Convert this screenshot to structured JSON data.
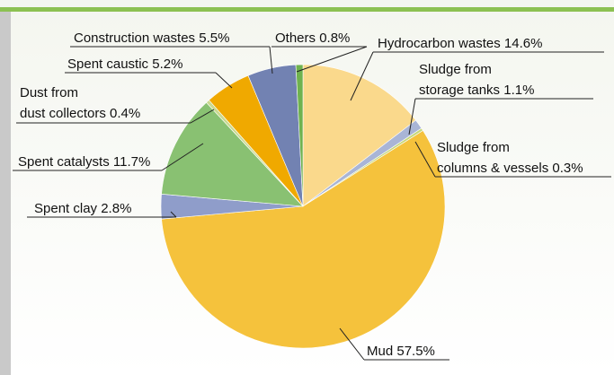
{
  "chart_data": {
    "type": "pie",
    "categories": [
      "Hydrocarbon wastes",
      "Sludge from\nstorage tanks",
      "Sludge from\ncolumns & vessels",
      "Mud",
      "Spent clay",
      "Spent catalysts",
      "Dust from\ndust collectors",
      "Spent caustic",
      "Construction wastes",
      "Others"
    ],
    "values": [
      14.6,
      1.1,
      0.3,
      57.5,
      2.8,
      11.7,
      0.4,
      5.2,
      5.5,
      0.8
    ],
    "value_labels": [
      "14.6%",
      "1.1%",
      "0.3%",
      "57.5%",
      "2.8%",
      "11.7%",
      "0.4%",
      "5.2%",
      "5.5%",
      "0.8%"
    ],
    "colors": [
      "#fad98c",
      "#a9b5d6",
      "#c6d77a",
      "#f5c23c",
      "#8f9dca",
      "#89c172",
      "#c9d98f",
      "#f0a900",
      "#7282b2",
      "#6fb24f"
    ]
  }
}
